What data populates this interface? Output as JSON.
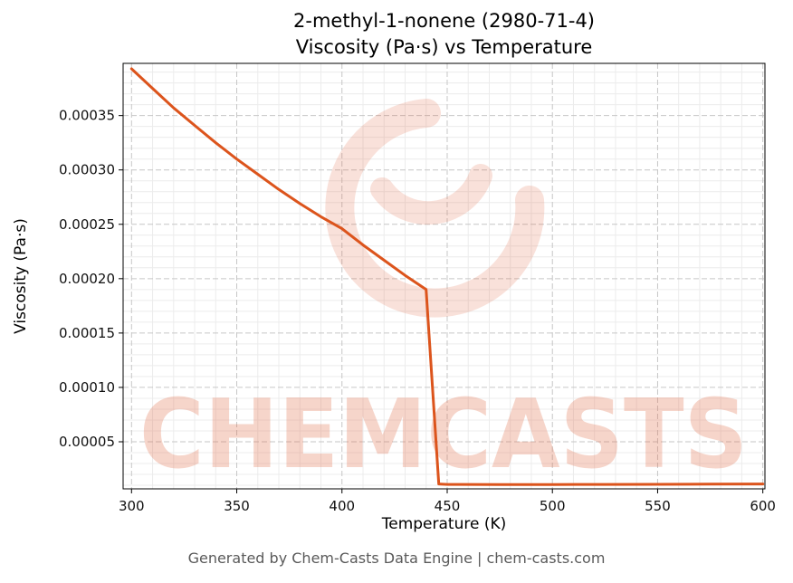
{
  "chart": {
    "title_line1": "2-methyl-1-nonene (2980-71-4)",
    "title_line2": "Viscosity (Pa·s) vs Temperature",
    "xlabel": "Temperature (K)",
    "ylabel": "Viscosity (Pa·s)"
  },
  "footer": {
    "text": "Generated by Chem-Casts Data Engine | chem-casts.com"
  },
  "watermark": {
    "text": "CHEMCASTS",
    "color": "#e26a46"
  },
  "chart_data": {
    "type": "line",
    "title": "2-methyl-1-nonene (2980-71-4) — Viscosity (Pa·s) vs Temperature",
    "xlabel": "Temperature (K)",
    "ylabel": "Viscosity (Pa·s)",
    "xlim": [
      296,
      601
    ],
    "ylim": [
      6.7e-06,
      0.000398
    ],
    "x_ticks": [
      300,
      350,
      400,
      450,
      500,
      550,
      600
    ],
    "x_tick_labels": [
      "300",
      "350",
      "400",
      "450",
      "500",
      "550",
      "600"
    ],
    "y_ticks": [
      5e-05,
      0.0001,
      0.00015,
      0.0002,
      0.00025,
      0.0003,
      0.00035
    ],
    "y_tick_labels": [
      "0.00005",
      "0.00010",
      "0.00015",
      "0.00020",
      "0.00025",
      "0.00030",
      "0.00035"
    ],
    "grid": true,
    "legend": false,
    "line_color": "#dc541c",
    "series": [
      {
        "name": "viscosity",
        "x": [
          300,
          310,
          320,
          330,
          340,
          350,
          360,
          370,
          380,
          390,
          400,
          410,
          420,
          430,
          440,
          446,
          450,
          475,
          500,
          525,
          550,
          575,
          600
        ],
        "y": [
          0.000393,
          0.000375,
          0.000357,
          0.000341,
          0.000325,
          0.00031,
          0.000296,
          0.000282,
          0.000269,
          0.000257,
          0.000246,
          0.000231,
          0.000217,
          0.000203,
          0.00019,
          1.12e-05,
          1.08e-05,
          1.07e-05,
          1.07e-05,
          1.08e-05,
          1.09e-05,
          1.1e-05,
          1.12e-05
        ]
      }
    ]
  }
}
